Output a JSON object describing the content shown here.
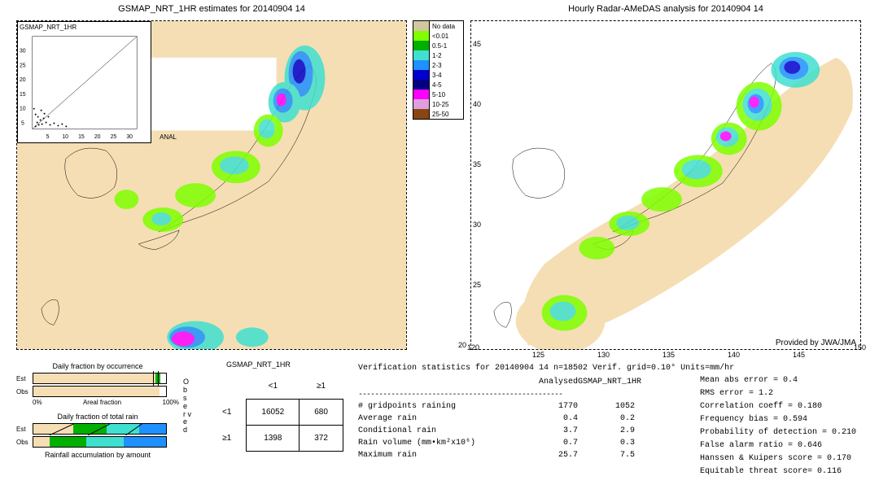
{
  "left_map": {
    "title": "GSMAP_NRT_1HR estimates for 20140904 14",
    "inset_label": "GSMAP_NRT_1HR",
    "inset_anal": "ANAL",
    "x_ticks": [
      "5",
      "10",
      "15",
      "20",
      "25",
      "30"
    ],
    "inset_xticks": [
      "5",
      "10",
      "15",
      "20",
      "25",
      "30"
    ],
    "inset_yticks": [
      "5",
      "10",
      "15",
      "20",
      "25",
      "30"
    ]
  },
  "right_map": {
    "title": "Hourly Radar-AMeDAS analysis for 20140904 14",
    "credit": "Provided by JWA/JMA",
    "x_ticks": [
      "120",
      "125",
      "130",
      "135",
      "140",
      "145",
      "150"
    ],
    "y_ticks": [
      "20",
      "25",
      "30",
      "35",
      "40",
      "45"
    ]
  },
  "legend": {
    "items": [
      {
        "color": "#d2c8a0",
        "label": "No data"
      },
      {
        "color": "#7fff00",
        "label": "<0.01"
      },
      {
        "color": "#00b000",
        "label": "0.5-1"
      },
      {
        "color": "#40e0d0",
        "label": "1-2"
      },
      {
        "color": "#1e90ff",
        "label": "2-3"
      },
      {
        "color": "#0000cd",
        "label": "3-4"
      },
      {
        "color": "#000080",
        "label": "4-5"
      },
      {
        "color": "#ff00ff",
        "label": "5-10"
      },
      {
        "color": "#dda0dd",
        "label": "10-25"
      },
      {
        "color": "#8b4513",
        "label": "25-50"
      }
    ]
  },
  "bars": {
    "occurrence_title": "Daily fraction by occurrence",
    "totalrain_title": "Daily fraction of total rain",
    "accum_title": "Rainfall accumulation by amount",
    "est_label": "Est",
    "obs_label": "Obs",
    "pct0": "0%",
    "pct100": "100%",
    "areal": "Areal fraction",
    "est_occ_pct": 92,
    "obs_occ_pct": 95,
    "colors": {
      "base": "#f5deb3",
      "c1": "#00b000",
      "c2": "#40e0d0",
      "c3": "#1e90ff"
    }
  },
  "contingency": {
    "title": "GSMAP_NRT_1HR",
    "col1": "<1",
    "col2": "≥1",
    "row1": "<1",
    "row2": "≥1",
    "v11": "16052",
    "v12": "680",
    "v21": "1398",
    "v22": "372",
    "observed_label": "O b s e r v e d"
  },
  "verif": {
    "header": "Verification statistics for 20140904 14  n=18502  Verif. grid=0.10°  Units=mm/hr",
    "col_analysed": "Analysed",
    "col_model": "GSMAP_NRT_1HR",
    "rows": [
      {
        "label": "# gridpoints raining",
        "a": "1770",
        "m": "1052"
      },
      {
        "label": "Average rain",
        "a": "0.4",
        "m": "0.2"
      },
      {
        "label": "Conditional rain",
        "a": "3.7",
        "m": "2.9"
      },
      {
        "label": "Rain volume (mm•km²x10⁶)",
        "a": "0.7",
        "m": "0.3"
      },
      {
        "label": "Maximum rain",
        "a": "25.7",
        "m": "7.5"
      }
    ],
    "metrics": [
      "Mean abs error = 0.4",
      "RMS error = 1.2",
      "Correlation coeff = 0.180",
      "Frequency bias = 0.594",
      "Probability of detection = 0.210",
      "False alarm ratio = 0.646",
      "Hanssen & Kuipers score = 0.170",
      "Equitable threat score= 0.116"
    ]
  },
  "palette": {
    "sea": "#f5deb3",
    "nodata": "#ffffff"
  }
}
